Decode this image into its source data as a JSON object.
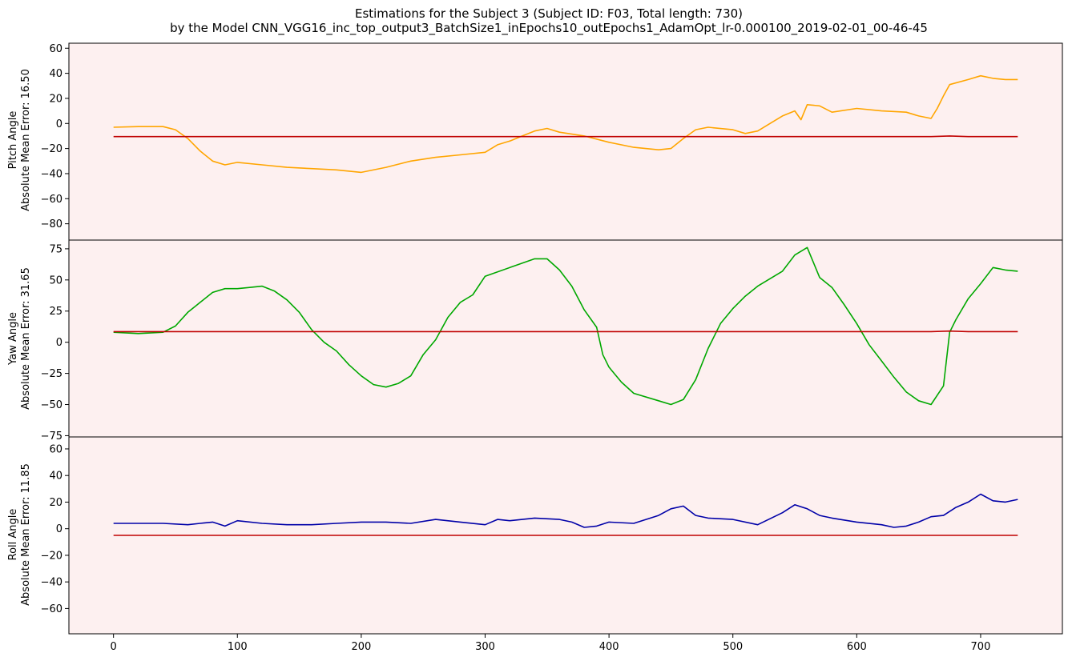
{
  "figure": {
    "title_line1": "Estimations for the Subject 3 (Subject ID: F03, Total length: 730)",
    "title_line2": "by the Model CNN_VGG16_inc_top_output3_BatchSize1_inEpochs10_outEpochs1_AdamOpt_lr-0.000100_2019-02-01_00-46-45",
    "background_color": "#fdf0f0",
    "estimate_color": "#c00000"
  },
  "chart_data": [
    {
      "type": "line",
      "ylabel_line1": "Pitch Angle",
      "ylabel_line2": "Absolute Mean Error: 16.50",
      "ylim": [
        -93,
        64
      ],
      "xlim": [
        -36,
        766
      ],
      "yticks": [
        60,
        40,
        20,
        0,
        -20,
        -40,
        -60,
        -80
      ],
      "series": [
        {
          "color": "#ffa500",
          "points": [
            [
              0,
              -3
            ],
            [
              20,
              -2.5
            ],
            [
              40,
              -2.5
            ],
            [
              50,
              -5
            ],
            [
              60,
              -12
            ],
            [
              70,
              -22
            ],
            [
              80,
              -30
            ],
            [
              90,
              -33
            ],
            [
              100,
              -31
            ],
            [
              120,
              -33
            ],
            [
              140,
              -35
            ],
            [
              160,
              -36
            ],
            [
              180,
              -37
            ],
            [
              200,
              -39
            ],
            [
              220,
              -35
            ],
            [
              240,
              -30
            ],
            [
              260,
              -27
            ],
            [
              280,
              -25
            ],
            [
              300,
              -23
            ],
            [
              310,
              -17
            ],
            [
              320,
              -14
            ],
            [
              330,
              -10
            ],
            [
              340,
              -6
            ],
            [
              350,
              -4
            ],
            [
              360,
              -7
            ],
            [
              380,
              -10
            ],
            [
              400,
              -15
            ],
            [
              420,
              -19
            ],
            [
              440,
              -21
            ],
            [
              450,
              -20
            ],
            [
              460,
              -12
            ],
            [
              470,
              -5
            ],
            [
              480,
              -3
            ],
            [
              500,
              -5
            ],
            [
              510,
              -8
            ],
            [
              520,
              -6
            ],
            [
              530,
              0
            ],
            [
              540,
              6
            ],
            [
              550,
              10
            ],
            [
              555,
              3
            ],
            [
              560,
              15
            ],
            [
              570,
              14
            ],
            [
              580,
              9
            ],
            [
              600,
              12
            ],
            [
              620,
              10
            ],
            [
              640,
              9
            ],
            [
              650,
              6
            ],
            [
              660,
              4
            ],
            [
              665,
              12
            ],
            [
              670,
              22
            ],
            [
              675,
              31
            ],
            [
              690,
              35
            ],
            [
              700,
              38
            ],
            [
              710,
              36
            ],
            [
              720,
              35
            ],
            [
              730,
              35
            ]
          ]
        },
        {
          "color": "#c00000",
          "points": [
            [
              0,
              -10.5
            ],
            [
              200,
              -10.5
            ],
            [
              400,
              -10.5
            ],
            [
              600,
              -10.5
            ],
            [
              660,
              -10.5
            ],
            [
              675,
              -10
            ],
            [
              690,
              -10.5
            ],
            [
              730,
              -10.5
            ]
          ]
        }
      ]
    },
    {
      "type": "line",
      "ylabel_line1": "Yaw Angle",
      "ylabel_line2": "Absolute Mean Error: 31.65",
      "ylim": [
        -76,
        82
      ],
      "xlim": [
        -36,
        766
      ],
      "yticks": [
        75,
        50,
        25,
        0,
        -25,
        -50,
        -75
      ],
      "series": [
        {
          "color": "#00a800",
          "points": [
            [
              0,
              8
            ],
            [
              20,
              7
            ],
            [
              40,
              8
            ],
            [
              50,
              13
            ],
            [
              60,
              24
            ],
            [
              70,
              32
            ],
            [
              80,
              40
            ],
            [
              90,
              43
            ],
            [
              100,
              43
            ],
            [
              110,
              44
            ],
            [
              120,
              45
            ],
            [
              130,
              41
            ],
            [
              140,
              34
            ],
            [
              150,
              24
            ],
            [
              160,
              10
            ],
            [
              170,
              0
            ],
            [
              180,
              -7
            ],
            [
              190,
              -18
            ],
            [
              200,
              -27
            ],
            [
              210,
              -34
            ],
            [
              220,
              -36
            ],
            [
              230,
              -33
            ],
            [
              240,
              -27
            ],
            [
              250,
              -10
            ],
            [
              260,
              2
            ],
            [
              270,
              20
            ],
            [
              280,
              32
            ],
            [
              290,
              38
            ],
            [
              300,
              53
            ],
            [
              320,
              60
            ],
            [
              340,
              67
            ],
            [
              350,
              67
            ],
            [
              360,
              58
            ],
            [
              370,
              45
            ],
            [
              380,
              26
            ],
            [
              390,
              12
            ],
            [
              395,
              -10
            ],
            [
              400,
              -20
            ],
            [
              410,
              -32
            ],
            [
              420,
              -41
            ],
            [
              440,
              -47
            ],
            [
              450,
              -50
            ],
            [
              460,
              -46
            ],
            [
              470,
              -30
            ],
            [
              480,
              -5
            ],
            [
              490,
              15
            ],
            [
              500,
              27
            ],
            [
              510,
              37
            ],
            [
              520,
              45
            ],
            [
              540,
              57
            ],
            [
              550,
              70
            ],
            [
              560,
              76
            ],
            [
              570,
              52
            ],
            [
              580,
              44
            ],
            [
              590,
              30
            ],
            [
              600,
              15
            ],
            [
              610,
              -2
            ],
            [
              620,
              -15
            ],
            [
              630,
              -28
            ],
            [
              640,
              -40
            ],
            [
              650,
              -47
            ],
            [
              660,
              -50
            ],
            [
              670,
              -35
            ],
            [
              675,
              8
            ],
            [
              680,
              18
            ],
            [
              690,
              35
            ],
            [
              700,
              47
            ],
            [
              710,
              60
            ],
            [
              720,
              58
            ],
            [
              730,
              57
            ]
          ]
        },
        {
          "color": "#c00000",
          "points": [
            [
              0,
              8.5
            ],
            [
              200,
              8.5
            ],
            [
              400,
              8.5
            ],
            [
              600,
              8.5
            ],
            [
              660,
              8.5
            ],
            [
              675,
              9
            ],
            [
              690,
              8.5
            ],
            [
              730,
              8.5
            ]
          ]
        }
      ]
    },
    {
      "type": "line",
      "ylabel_line1": "Roll Angle",
      "ylabel_line2": "Absolute Mean Error: 11.85",
      "ylim": [
        -79,
        69
      ],
      "xlim": [
        -36,
        766
      ],
      "yticks": [
        60,
        40,
        20,
        0,
        -20,
        -40,
        -60
      ],
      "xticks": [
        0,
        100,
        200,
        300,
        400,
        500,
        600,
        700
      ],
      "series": [
        {
          "color": "#0000a8",
          "points": [
            [
              0,
              4
            ],
            [
              20,
              4
            ],
            [
              40,
              4
            ],
            [
              60,
              3
            ],
            [
              70,
              4
            ],
            [
              80,
              5
            ],
            [
              90,
              2
            ],
            [
              100,
              6
            ],
            [
              120,
              4
            ],
            [
              140,
              3
            ],
            [
              160,
              3
            ],
            [
              180,
              4
            ],
            [
              200,
              5
            ],
            [
              220,
              5
            ],
            [
              240,
              4
            ],
            [
              260,
              7
            ],
            [
              280,
              5
            ],
            [
              300,
              3
            ],
            [
              310,
              7
            ],
            [
              320,
              6
            ],
            [
              340,
              8
            ],
            [
              360,
              7
            ],
            [
              370,
              5
            ],
            [
              380,
              1
            ],
            [
              390,
              2
            ],
            [
              400,
              5
            ],
            [
              420,
              4
            ],
            [
              440,
              10
            ],
            [
              450,
              15
            ],
            [
              460,
              17
            ],
            [
              470,
              10
            ],
            [
              480,
              8
            ],
            [
              500,
              7
            ],
            [
              520,
              3
            ],
            [
              540,
              12
            ],
            [
              550,
              18
            ],
            [
              560,
              15
            ],
            [
              570,
              10
            ],
            [
              580,
              8
            ],
            [
              600,
              5
            ],
            [
              620,
              3
            ],
            [
              630,
              1
            ],
            [
              640,
              2
            ],
            [
              650,
              5
            ],
            [
              660,
              9
            ],
            [
              670,
              10
            ],
            [
              680,
              16
            ],
            [
              690,
              20
            ],
            [
              700,
              26
            ],
            [
              710,
              21
            ],
            [
              720,
              20
            ],
            [
              730,
              22
            ]
          ]
        },
        {
          "color": "#c00000",
          "points": [
            [
              0,
              -5
            ],
            [
              200,
              -5
            ],
            [
              400,
              -5
            ],
            [
              600,
              -5
            ],
            [
              730,
              -5
            ]
          ]
        }
      ]
    }
  ]
}
